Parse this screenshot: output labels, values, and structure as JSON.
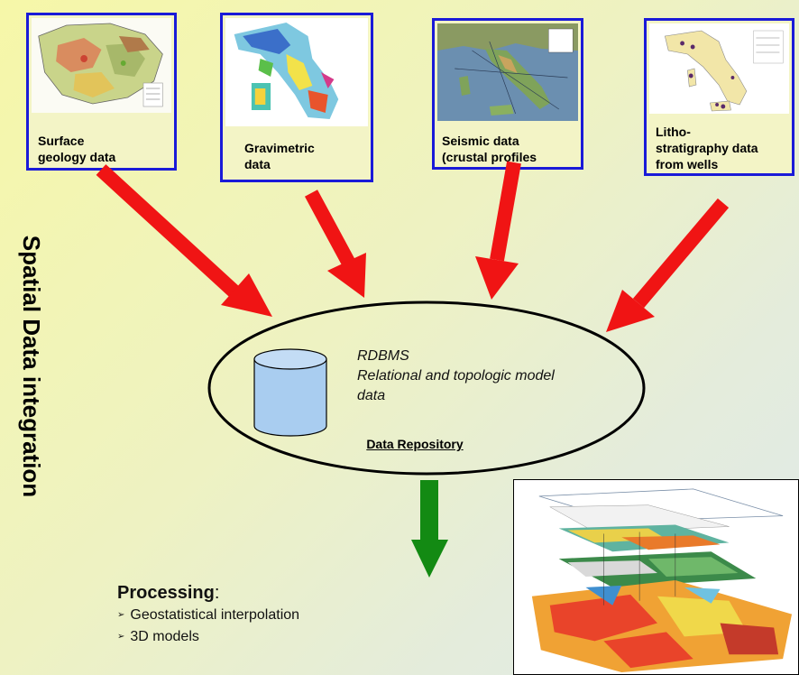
{
  "side_title": "Spatial Data integration",
  "sources": [
    {
      "label": "Surface\ngeology data",
      "map": "surface-geology-map"
    },
    {
      "label": "Gravimetric\ndata",
      "map": "gravimetric-map"
    },
    {
      "label": "Seismic data\n(crustal profiles",
      "map": "seismic-map"
    },
    {
      "label": "Litho-\nstratigraphy data\nfrom wells",
      "map": "wells-map"
    }
  ],
  "repository": {
    "line1": "RDBMS",
    "line2": "Relational and topologic model",
    "line3": "data",
    "label": "Data Repository"
  },
  "processing": {
    "title": "Processing",
    "colon": ":",
    "bullet": "➢",
    "items": [
      "Geostatistical interpolation",
      "3D models"
    ]
  },
  "colors": {
    "card_border": "#1a1ad8",
    "input_arrow": "#f01414",
    "output_arrow": "#138a13",
    "cylinder": "#a9cdf0"
  }
}
